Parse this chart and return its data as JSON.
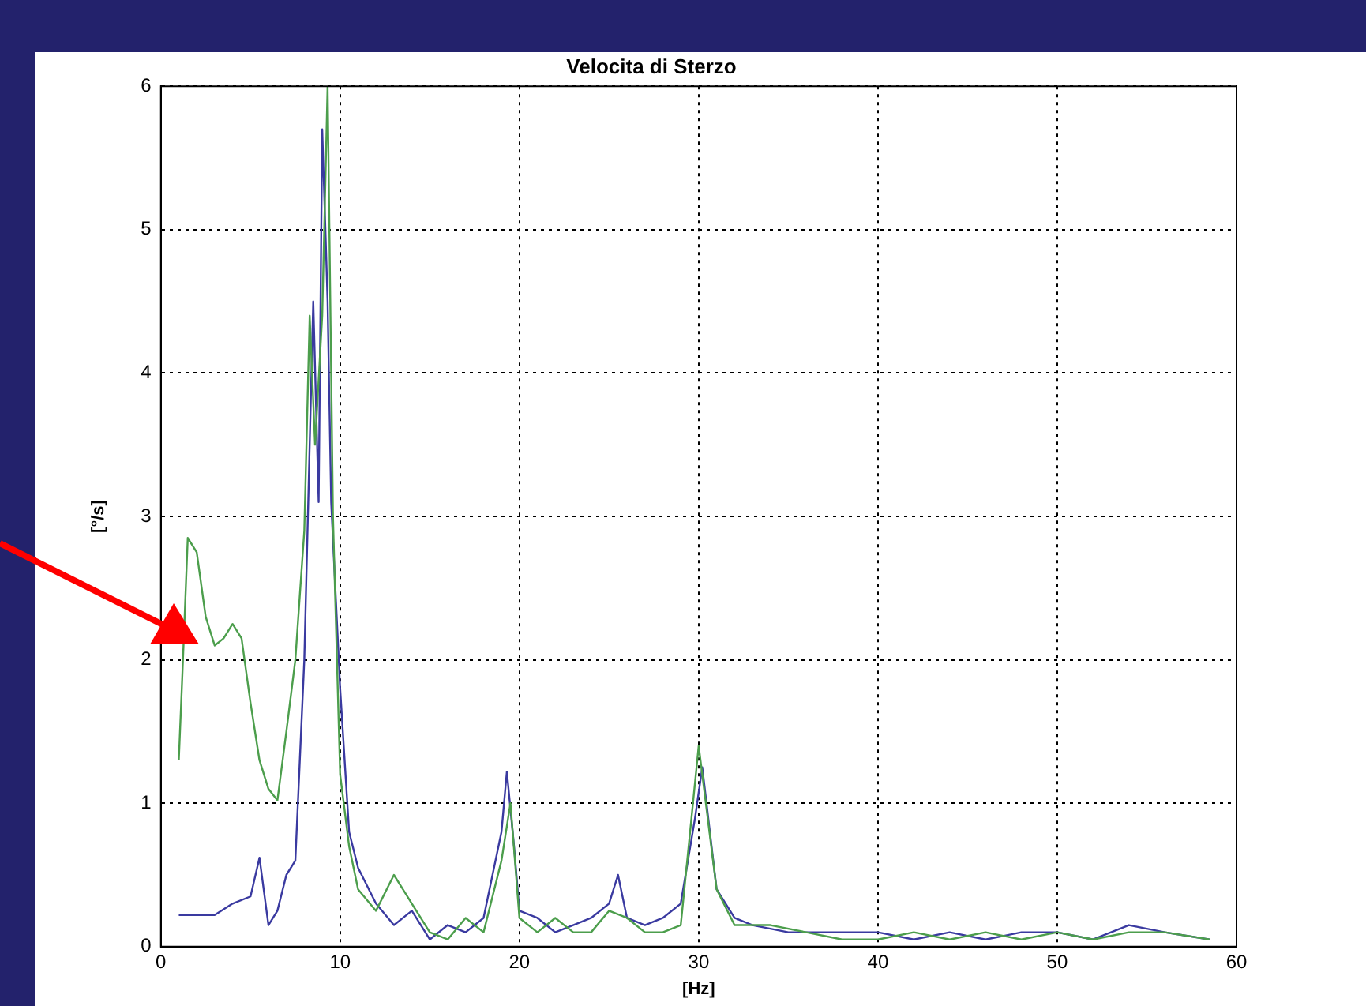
{
  "chart_data": {
    "type": "line",
    "title": "Velocita di Sterzo",
    "xlabel": "[Hz]",
    "ylabel": "[°/s]",
    "xlim": [
      0,
      60
    ],
    "xticks": [
      0,
      10,
      20,
      30,
      40,
      50,
      60
    ],
    "ylim": [
      0,
      6
    ],
    "yticks": [
      0,
      1,
      2,
      3,
      4,
      5,
      6
    ],
    "grid": true,
    "legend": false,
    "marker": "none",
    "line_style": "solid",
    "series": [
      {
        "color": "#4c9e4c",
        "x": [
          1,
          1.2,
          1.5,
          2,
          2.5,
          3,
          3.5,
          4,
          4.5,
          5,
          5.5,
          6,
          6.5,
          7,
          7.5,
          8,
          8.3,
          8.6,
          9,
          9.3,
          9.6,
          10,
          10.5,
          11,
          12,
          13,
          14,
          15,
          16,
          17,
          18,
          19,
          19.5,
          20,
          21,
          22,
          23,
          24,
          25,
          26,
          27,
          28,
          29,
          30,
          31,
          32,
          34,
          36,
          38,
          40,
          42,
          44,
          46,
          48,
          50,
          52,
          54,
          56,
          58.5
        ],
        "values": [
          1.3,
          1.9,
          2.85,
          2.75,
          2.3,
          2.1,
          2.15,
          2.25,
          2.15,
          1.7,
          1.3,
          1.1,
          1.02,
          1.5,
          2,
          2.9,
          4.4,
          3.5,
          4.4,
          6,
          3,
          1.2,
          0.7,
          0.4,
          0.25,
          0.5,
          0.3,
          0.1,
          0.05,
          0.2,
          0.1,
          0.6,
          1,
          0.2,
          0.1,
          0.2,
          0.1,
          0.1,
          0.25,
          0.2,
          0.1,
          0.1,
          0.15,
          1.4,
          0.4,
          0.15,
          0.15,
          0.1,
          0.05,
          0.05,
          0.1,
          0.05,
          0.1,
          0.05,
          0.1,
          0.05,
          0.1,
          0.1,
          0.05
        ]
      },
      {
        "color": "#3a3aa0",
        "x": [
          1,
          2,
          3,
          4,
          5,
          5.5,
          6,
          6.5,
          7,
          7.5,
          8,
          8.5,
          8.8,
          9,
          9.3,
          9.5,
          10,
          10.5,
          11,
          12,
          13,
          14,
          15,
          16,
          17,
          18,
          19,
          19.3,
          19.7,
          20,
          21,
          22,
          23,
          24,
          25,
          25.5,
          26,
          27,
          28,
          29,
          29.8,
          30.2,
          31,
          32,
          33,
          35,
          38,
          40,
          42,
          44,
          46,
          48,
          50,
          52,
          54,
          56,
          58.5
        ],
        "values": [
          0.22,
          0.22,
          0.22,
          0.3,
          0.35,
          0.62,
          0.15,
          0.25,
          0.5,
          0.6,
          2,
          4.5,
          3.1,
          5.7,
          4.5,
          3.1,
          1.8,
          0.8,
          0.55,
          0.3,
          0.15,
          0.25,
          0.05,
          0.15,
          0.1,
          0.2,
          0.8,
          1.22,
          0.7,
          0.25,
          0.2,
          0.1,
          0.15,
          0.2,
          0.3,
          0.5,
          0.2,
          0.15,
          0.2,
          0.3,
          0.9,
          1.25,
          0.4,
          0.2,
          0.15,
          0.1,
          0.1,
          0.1,
          0.05,
          0.1,
          0.05,
          0.1,
          0.1,
          0.05,
          0.15,
          0.1,
          0.05
        ]
      }
    ]
  }
}
